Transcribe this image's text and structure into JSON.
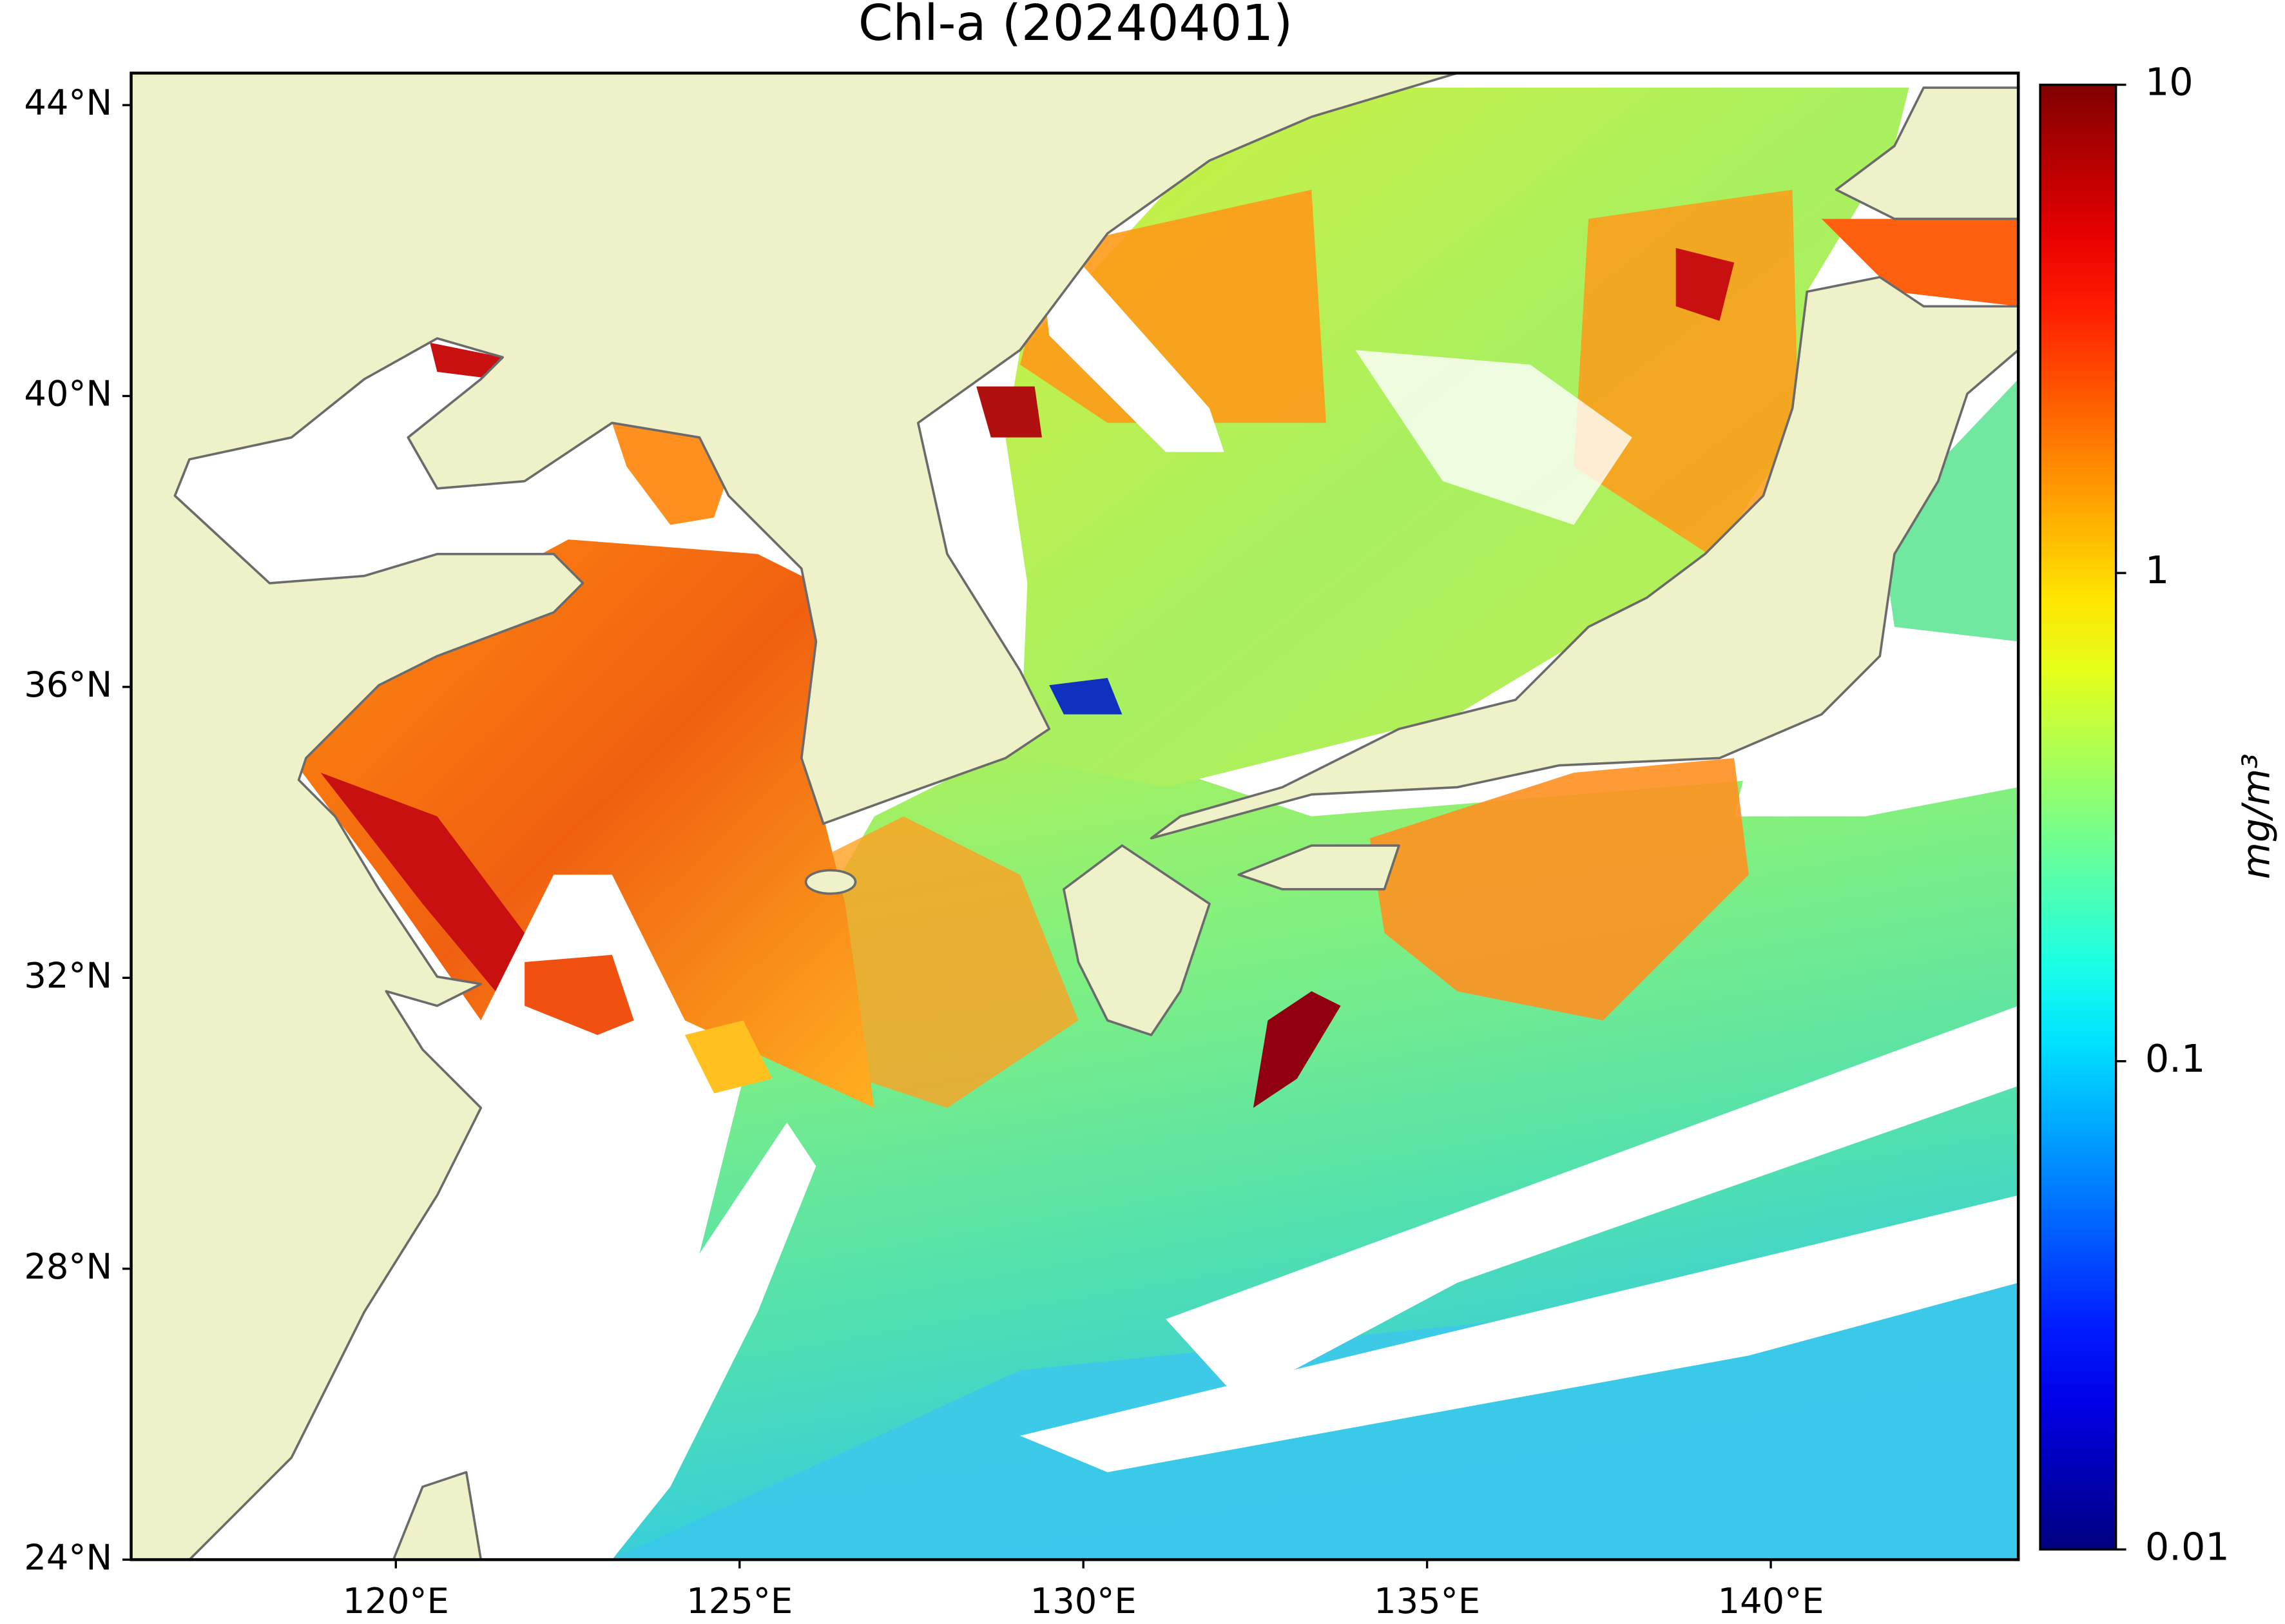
{
  "chart_data": {
    "type": "map",
    "title": "Chl-a (20240401)",
    "xlim": [
      116.15,
      143.6
    ],
    "ylim": [
      24,
      44.44
    ],
    "xticks": [
      {
        "value": 120,
        "label": "120°E"
      },
      {
        "value": 125,
        "label": "125°E"
      },
      {
        "value": 130,
        "label": "130°E"
      },
      {
        "value": 135,
        "label": "135°E"
      },
      {
        "value": 140,
        "label": "140°E"
      }
    ],
    "yticks": [
      {
        "value": 24,
        "label": "24°N"
      },
      {
        "value": 28,
        "label": "28°N"
      },
      {
        "value": 32,
        "label": "32°N"
      },
      {
        "value": 36,
        "label": "36°N"
      },
      {
        "value": 40,
        "label": "40°N"
      },
      {
        "value": 44,
        "label": "44°N"
      }
    ],
    "colorbar": {
      "label": "mg/m³",
      "colormap": "jet",
      "log_scale": true,
      "lim": [
        0.01,
        10
      ],
      "ticks": [
        0.01,
        0.1,
        1,
        10
      ]
    }
  }
}
